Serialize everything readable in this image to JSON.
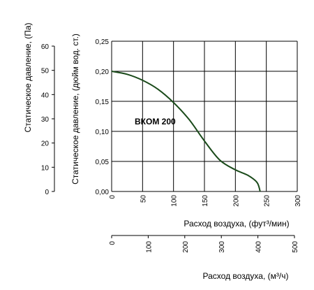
{
  "chart_data": {
    "type": "line",
    "series": [
      {
        "name": "ВКОМ 200",
        "x": [
          0,
          25,
          50,
          75,
          100,
          125,
          150,
          175,
          200,
          220,
          235,
          240
        ],
        "y": [
          0.2,
          0.195,
          0.185,
          0.17,
          0.148,
          0.12,
          0.084,
          0.052,
          0.036,
          0.027,
          0.015,
          0.0
        ]
      }
    ],
    "curve_label": "ВКОМ 200",
    "curve_color": "#1a4a1a",
    "grid": true,
    "axes": {
      "x_cfm": {
        "label": "Расход воздуха, (фут³/мин)",
        "ticks": [
          "0",
          "50",
          "100",
          "150",
          "200",
          "250",
          "300"
        ],
        "range": [
          0,
          300
        ]
      },
      "x_m3h": {
        "label": "Расход воздуха, (м³/ч)",
        "ticks": [
          "0",
          "100",
          "200",
          "300",
          "400",
          "500"
        ],
        "range": [
          0,
          500
        ]
      },
      "y_inwg": {
        "label": "Статическое давление, (дюйм вод. ст.)",
        "ticks": [
          "0,00",
          "0,05",
          "0,10",
          "0,15",
          "0,20",
          "0,25"
        ],
        "range": [
          0,
          0.25
        ]
      },
      "y_pa": {
        "label": "Статическое давление, (Па)",
        "ticks": [
          "0",
          "10",
          "20",
          "30",
          "40",
          "50",
          "60"
        ],
        "range": [
          0,
          60
        ]
      }
    }
  }
}
